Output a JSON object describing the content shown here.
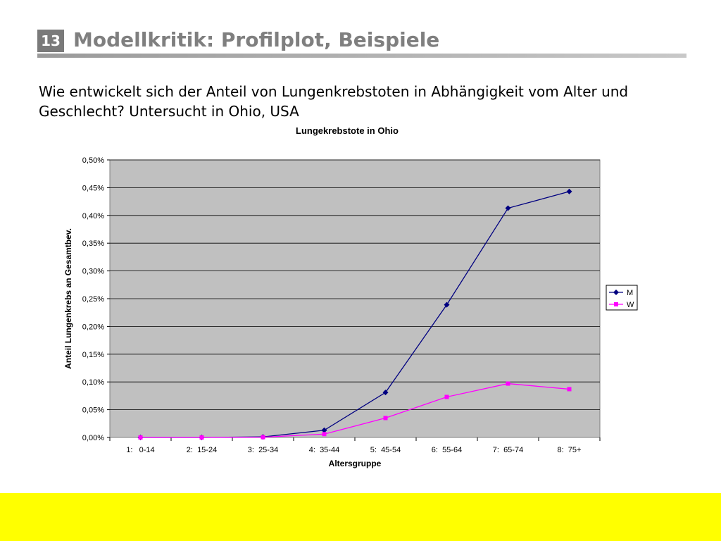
{
  "slide": {
    "number": "13",
    "title": "Modellkritik: Profilplot, Beispiele",
    "intro": "Wie entwickelt sich der Anteil von Lungenkrebstoten in Abhängigkeit vom Alter und Geschlecht? Untersucht in Ohio, USA"
  },
  "chart_data": {
    "type": "line",
    "title": "Lungekrebstote in Ohio",
    "xlabel": "Altersgruppe",
    "ylabel": "Anteil Lungenkrebs an Gesamtbev.",
    "categories": [
      "1:   0-14",
      "2:  15-24",
      "3:  25-34",
      "4:  35-44",
      "5:  45-54",
      "6:  55-64",
      "7:  65-74",
      "8:  75+"
    ],
    "ylim": [
      0,
      0.5
    ],
    "yticks": [
      0,
      0.05,
      0.1,
      0.15,
      0.2,
      0.25,
      0.3,
      0.35,
      0.4,
      0.45,
      0.5
    ],
    "ytick_labels": [
      "0,00%",
      "0,05%",
      "0,10%",
      "0,15%",
      "0,20%",
      "0,25%",
      "0,30%",
      "0,35%",
      "0,40%",
      "0,45%",
      "0,50%"
    ],
    "grid": true,
    "legend_position": "right",
    "series": [
      {
        "name": "M",
        "color": "#000080",
        "marker": "diamond",
        "values": [
          0.0,
          0.0,
          0.001,
          0.013,
          0.081,
          0.239,
          0.413,
          0.443
        ]
      },
      {
        "name": "W",
        "color": "#ff00ff",
        "marker": "square",
        "values": [
          0.0,
          0.0,
          0.0005,
          0.006,
          0.035,
          0.073,
          0.097,
          0.087
        ]
      }
    ],
    "plot_background": "#c0c0c0"
  }
}
